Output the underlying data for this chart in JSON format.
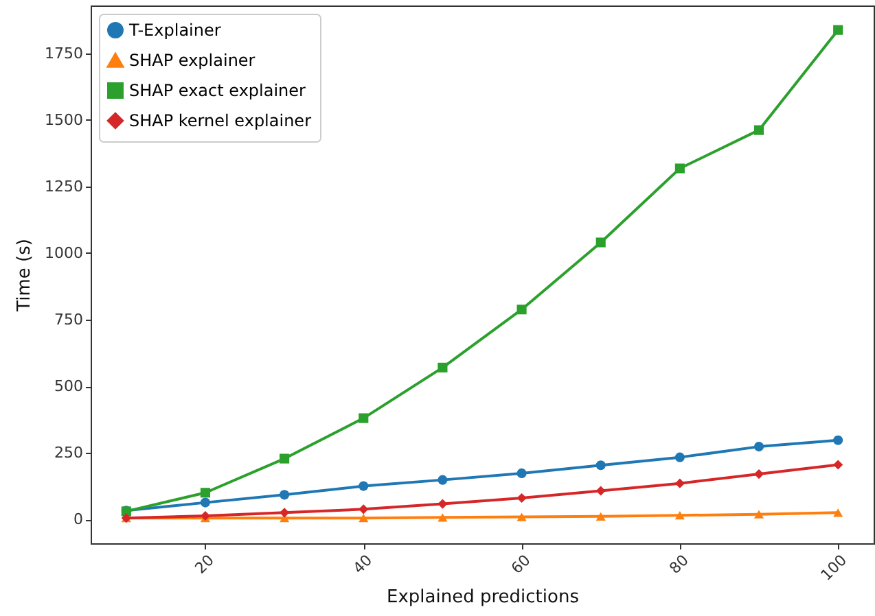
{
  "chart_data": {
    "type": "line",
    "xlabel": "Explained predictions",
    "ylabel": "Time (s)",
    "x": [
      10,
      20,
      30,
      40,
      50,
      60,
      70,
      80,
      90,
      100
    ],
    "series": [
      {
        "name": "T-Explainer",
        "color": "#1f77b4",
        "marker": "circle",
        "values": [
          33,
          63,
          92,
          125,
          148,
          173,
          203,
          233,
          273,
          297
        ]
      },
      {
        "name": "SHAP explainer",
        "color": "#ff7f0e",
        "marker": "triangle",
        "values": [
          5,
          5,
          5,
          5,
          7,
          9,
          11,
          15,
          19,
          25
        ]
      },
      {
        "name": "SHAP exact explainer",
        "color": "#2ca02c",
        "marker": "square",
        "values": [
          30,
          100,
          228,
          380,
          570,
          788,
          1040,
          1318,
          1462,
          1838
        ]
      },
      {
        "name": "SHAP kernel explainer",
        "color": "#d62728",
        "marker": "diamond",
        "values": [
          5,
          13,
          25,
          38,
          58,
          80,
          107,
          135,
          170,
          205
        ]
      }
    ],
    "xlim": [
      5.5,
      104.5
    ],
    "xticks": [
      20,
      40,
      60,
      80,
      100
    ],
    "ylim": [
      -90,
      1930
    ],
    "yticks": [
      0,
      250,
      500,
      750,
      1000,
      1250,
      1500,
      1750
    ],
    "grid": false,
    "legend": "top left"
  }
}
